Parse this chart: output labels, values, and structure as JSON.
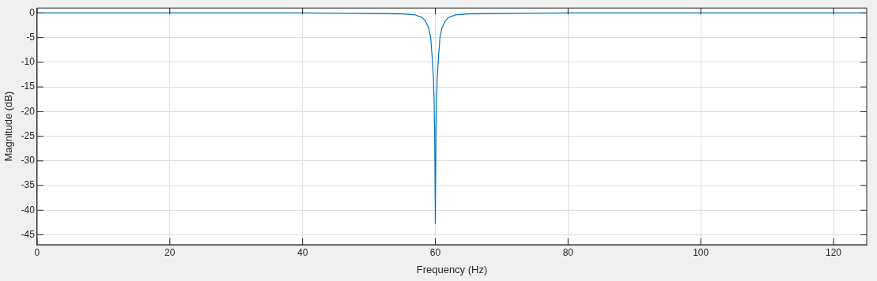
{
  "chart_data": {
    "type": "line",
    "xlabel": "Frequency (Hz)",
    "ylabel": "Magnitude (dB)",
    "x": [
      0,
      20,
      40,
      50,
      55,
      57,
      58,
      58.5,
      59,
      59.3,
      59.5,
      59.7,
      59.8,
      59.9,
      60,
      60.1,
      60.2,
      60.3,
      60.5,
      60.7,
      61,
      61.5,
      62,
      63,
      65,
      70,
      80,
      100,
      125
    ],
    "series": [
      {
        "color": "#0072bd",
        "values": [
          0,
          0,
          0,
          -0.1,
          -0.2,
          -0.4,
          -0.9,
          -1.6,
          -3,
          -5,
          -8.5,
          -13,
          -17,
          -24,
          -42.7,
          -24,
          -17,
          -13,
          -8.5,
          -5,
          -3,
          -1.6,
          -0.9,
          -0.4,
          -0.2,
          -0.1,
          0,
          0,
          0
        ]
      }
    ],
    "xlim": [
      0,
      125
    ],
    "xticks": [
      0,
      20,
      40,
      60,
      80,
      100,
      120
    ],
    "ylim": [
      -47,
      1
    ],
    "yticks": [
      0,
      -5,
      -10,
      -15,
      -20,
      -25,
      -30,
      -35,
      -40,
      -45
    ],
    "grid": true,
    "legend": false,
    "marker": "none",
    "line_style": "solid"
  }
}
